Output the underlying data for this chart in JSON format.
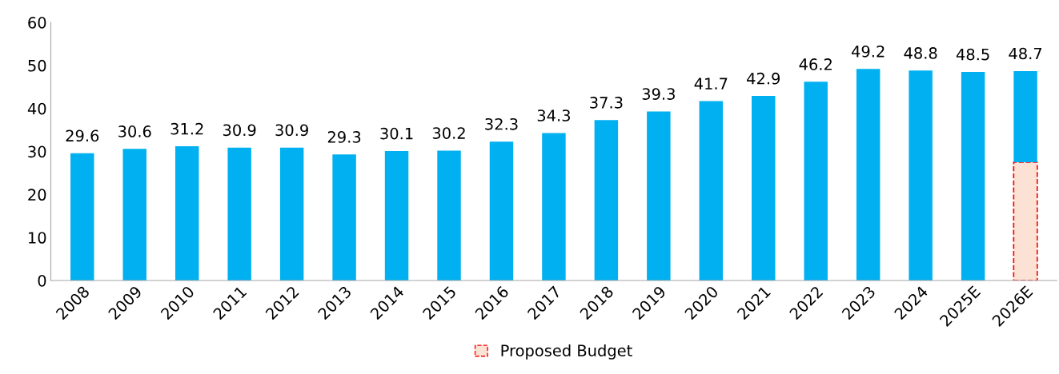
{
  "chart_data": {
    "type": "bar",
    "stacked": true,
    "categories": [
      "2008",
      "2009",
      "2010",
      "2011",
      "2012",
      "2013",
      "2014",
      "2015",
      "2016",
      "2017",
      "2018",
      "2019",
      "2020",
      "2021",
      "2022",
      "2023",
      "2024",
      "2025E",
      "2026E"
    ],
    "series": [
      {
        "name": "Proposed Budget",
        "color": "#fbe2d5",
        "values": [
          null,
          null,
          null,
          null,
          null,
          null,
          null,
          null,
          null,
          null,
          null,
          null,
          null,
          null,
          null,
          null,
          null,
          null,
          27.5
        ]
      },
      {
        "color": "#00b0f0",
        "values": [
          29.6,
          30.6,
          31.2,
          30.9,
          30.9,
          29.3,
          30.1,
          30.2,
          32.3,
          34.3,
          37.3,
          39.3,
          41.7,
          42.9,
          46.2,
          49.2,
          48.8,
          48.5,
          21.2
        ]
      }
    ],
    "totals": [
      "29.6",
      "30.6",
      "31.2",
      "30.9",
      "30.9",
      "29.3",
      "30.1",
      "30.2",
      "32.3",
      "34.3",
      "37.3",
      "39.3",
      "41.7",
      "42.9",
      "46.2",
      "49.2",
      "48.8",
      "48.5",
      "48.7"
    ],
    "ylim": [
      0,
      60
    ],
    "yticks": [
      0,
      10,
      20,
      30,
      40,
      50,
      60
    ],
    "grid": false,
    "legend": "bottom"
  }
}
